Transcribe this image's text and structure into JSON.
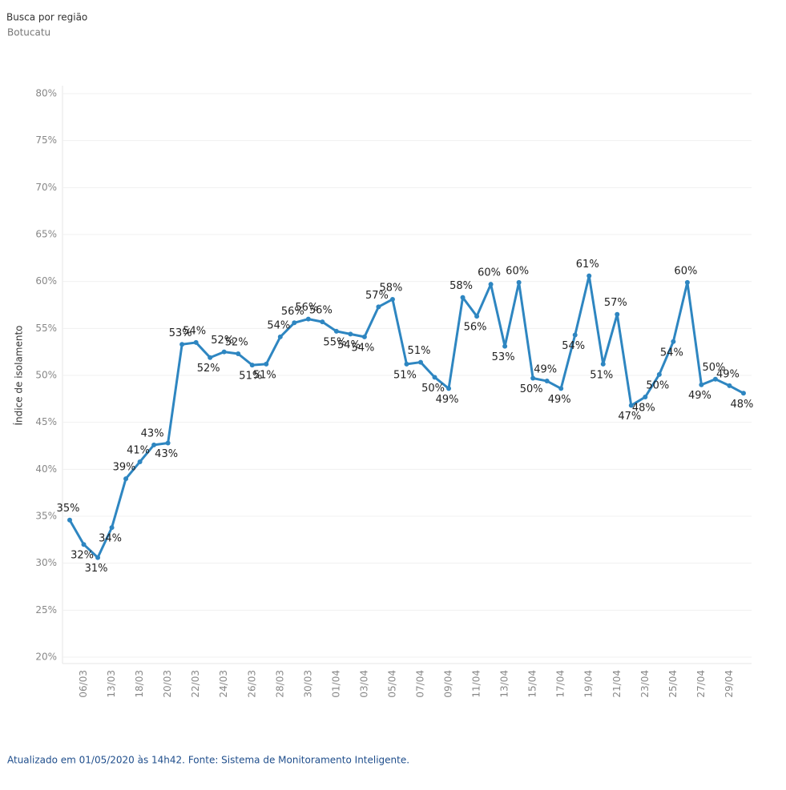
{
  "chart_data": {
    "type": "line",
    "title": "Busca por região",
    "subtitle": "Botucatu",
    "y_label": "Índice de isolamento",
    "footer": "Atualizado em 01/05/2020 às 14h42. Fonte: Sistema de Monitoramento Inteligente.",
    "categories": [
      null,
      "06/03",
      null,
      "13/03",
      null,
      "18/03",
      null,
      "20/03",
      null,
      "22/03",
      null,
      "24/03",
      null,
      "26/03",
      null,
      "28/03",
      null,
      "30/03",
      null,
      "01/04",
      null,
      "03/04",
      null,
      "05/04",
      null,
      "07/04",
      null,
      "09/04",
      null,
      "11/04",
      null,
      "13/04",
      null,
      "15/04",
      null,
      "17/04",
      null,
      "19/04",
      null,
      "21/04",
      null,
      "23/04",
      null,
      "25/04",
      null,
      "27/04",
      null,
      "29/04",
      null
    ],
    "series": [
      {
        "name": "Índice de isolamento",
        "color": "#2e86c1",
        "values": [
          34.6,
          32.0,
          30.6,
          33.8,
          39.0,
          40.8,
          42.6,
          42.8,
          53.3,
          53.5,
          51.9,
          52.5,
          52.3,
          51.1,
          51.2,
          54.1,
          55.6,
          56.0,
          55.7,
          54.7,
          54.4,
          54.1,
          57.3,
          58.1,
          51.2,
          51.4,
          49.8,
          48.6,
          58.3,
          56.3,
          59.7,
          53.1,
          59.9,
          49.7,
          49.4,
          48.6,
          54.3,
          60.6,
          51.2,
          56.5,
          46.8,
          47.7,
          50.1,
          53.6,
          59.9,
          49.0,
          49.6,
          48.9,
          48.1
        ],
        "value_labels": [
          "35%",
          "32%",
          "31%",
          "34%",
          "39%",
          "41%",
          "43%",
          "43%",
          "53%",
          "54%",
          "52%",
          "52%",
          "52%",
          "51%",
          "51%",
          "54%",
          "56%",
          "56%",
          "56%",
          "55%",
          "54%",
          "54%",
          "57%",
          "58%",
          "51%",
          "51%",
          "50%",
          "49%",
          "58%",
          "56%",
          "60%",
          "53%",
          "60%",
          "50%",
          "49%",
          "49%",
          "54%",
          "61%",
          "51%",
          "57%",
          "47%",
          "48%",
          "50%",
          "54%",
          "60%",
          "49%",
          "50%",
          "49%",
          "48%"
        ]
      }
    ],
    "ylim": [
      20,
      80
    ],
    "yticks": [
      {
        "value": 20,
        "label": "20%"
      },
      {
        "value": 25,
        "label": "25%"
      },
      {
        "value": 30,
        "label": "30%"
      },
      {
        "value": 35,
        "label": "35%"
      },
      {
        "value": 40,
        "label": "40%"
      },
      {
        "value": 45,
        "label": "45%"
      },
      {
        "value": 50,
        "label": "50%"
      },
      {
        "value": 55,
        "label": "55%"
      },
      {
        "value": 60,
        "label": "60%"
      },
      {
        "value": 65,
        "label": "65%"
      },
      {
        "value": 70,
        "label": "70%"
      },
      {
        "value": 75,
        "label": "75%"
      },
      {
        "value": 80,
        "label": "80%"
      }
    ],
    "grid": true
  }
}
